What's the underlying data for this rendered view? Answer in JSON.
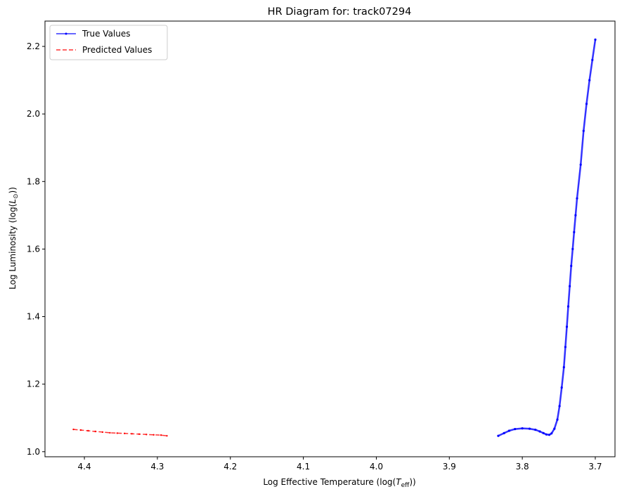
{
  "chart_data": {
    "type": "line",
    "title": "HR Diagram for: track07294",
    "xlabel": "Log Effective Temperature (log(T_eff))",
    "xlabel_parts": {
      "prefix": "Log Effective Temperature (log(",
      "var": "T",
      "sub": "eff",
      "suffix": "))"
    },
    "ylabel": "Log Luminosity (log(L_⊙))",
    "ylabel_parts": {
      "prefix": "Log Luminosity (log(",
      "var": "L",
      "sub": "⊙",
      "suffix": "))"
    },
    "xlim": [
      4.454,
      3.673
    ],
    "ylim": [
      0.985,
      2.275
    ],
    "x_inverted": true,
    "xticks": [
      4.4,
      4.3,
      4.2,
      4.1,
      4.0,
      3.9,
      3.8,
      3.7
    ],
    "xtick_labels": [
      "4.4",
      "4.3",
      "4.2",
      "4.1",
      "4.0",
      "3.9",
      "3.8",
      "3.7"
    ],
    "yticks": [
      1.0,
      1.2,
      1.4,
      1.6,
      1.8,
      2.0,
      2.2
    ],
    "ytick_labels": [
      "1.0",
      "1.2",
      "1.4",
      "1.6",
      "1.8",
      "2.0",
      "2.2"
    ],
    "legend_position": "top-left",
    "series": [
      {
        "name": "True Values",
        "color": "#0000ff",
        "style": "solid-with-markers",
        "x": [
          3.833,
          3.825,
          3.818,
          3.81,
          3.8,
          3.79,
          3.782,
          3.776,
          3.771,
          3.767,
          3.763,
          3.76,
          3.756,
          3.752,
          3.749,
          3.746,
          3.743,
          3.741,
          3.739,
          3.737,
          3.735,
          3.733,
          3.731,
          3.729,
          3.727,
          3.725,
          3.72,
          3.716,
          3.712,
          3.708,
          3.704,
          3.7
        ],
        "y": [
          1.047,
          1.055,
          1.062,
          1.067,
          1.069,
          1.068,
          1.065,
          1.06,
          1.055,
          1.051,
          1.05,
          1.054,
          1.068,
          1.095,
          1.135,
          1.19,
          1.25,
          1.31,
          1.37,
          1.43,
          1.49,
          1.55,
          1.6,
          1.65,
          1.7,
          1.75,
          1.85,
          1.95,
          2.03,
          2.1,
          2.16,
          2.22
        ]
      },
      {
        "name": "Predicted Values",
        "color": "#ff0000",
        "style": "dashed-with-markers",
        "x": [
          4.415,
          4.405,
          4.395,
          4.385,
          4.375,
          4.365,
          4.355,
          4.345,
          4.335,
          4.325,
          4.315,
          4.305,
          4.295,
          4.287
        ],
        "y": [
          1.066,
          1.064,
          1.062,
          1.06,
          1.058,
          1.056,
          1.055,
          1.054,
          1.053,
          1.052,
          1.051,
          1.05,
          1.049,
          1.047
        ]
      }
    ]
  }
}
